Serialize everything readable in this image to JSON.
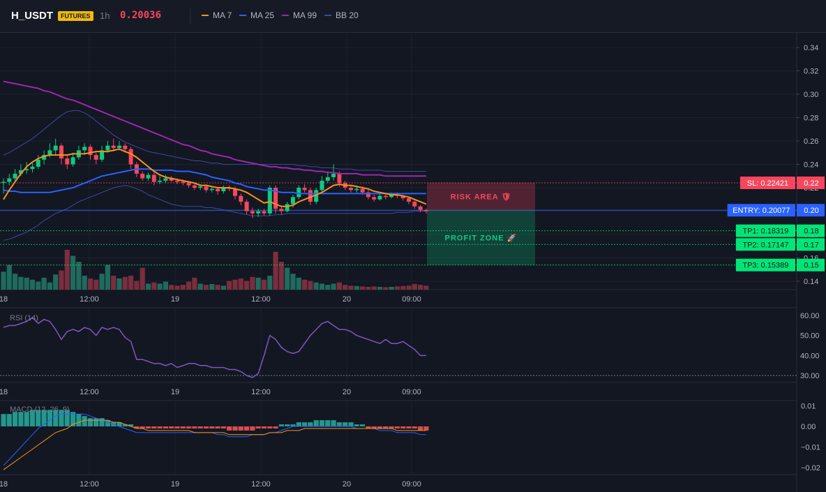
{
  "header": {
    "symbol": "H_USDT",
    "badge": "FUTURES",
    "timeframe": "1h",
    "last_price": "0.20036",
    "legend": [
      {
        "name": "MA 7",
        "color": "#f7931a"
      },
      {
        "name": "MA 25",
        "color": "#2962ff"
      },
      {
        "name": "MA 99",
        "color": "#9c27b0"
      },
      {
        "name": "BB 20",
        "color": "#3b4a9e"
      }
    ]
  },
  "colors": {
    "up": "#0ecb81",
    "down": "#f6465d",
    "volume_up": "#1f6b5e",
    "volume_down": "#7a2e3e",
    "rsi": "#7e57c2",
    "macd_line": "#2962ff",
    "signal_line": "#f7931a",
    "hist_up": "#26a69a",
    "hist_down": "#ef5350",
    "sl": "#f6465d",
    "entry": "#2962ff",
    "tp": "#00e676"
  },
  "chart_data": [
    {
      "type": "candlestick",
      "ylim": [
        0.13,
        0.35
      ],
      "price_ticks": [
        "0.34",
        "0.32",
        "0.30",
        "0.28",
        "0.26",
        "0.24",
        "0.22",
        "0.20",
        "0.18",
        "0.16",
        "0.14"
      ],
      "time_labels": [
        "18",
        "12:00",
        "19",
        "12:00",
        "20",
        "09:00"
      ],
      "candles": [
        [
          0.225,
          0.225,
          0.228,
          0.215
        ],
        [
          0.225,
          0.228,
          0.232,
          0.222
        ],
        [
          0.228,
          0.232,
          0.236,
          0.226
        ],
        [
          0.232,
          0.235,
          0.24,
          0.23
        ],
        [
          0.235,
          0.236,
          0.242,
          0.232
        ],
        [
          0.236,
          0.238,
          0.241,
          0.233
        ],
        [
          0.238,
          0.244,
          0.248,
          0.236
        ],
        [
          0.244,
          0.248,
          0.252,
          0.24
        ],
        [
          0.248,
          0.252,
          0.258,
          0.246
        ],
        [
          0.252,
          0.256,
          0.262,
          0.248
        ],
        [
          0.256,
          0.245,
          0.258,
          0.24
        ],
        [
          0.245,
          0.24,
          0.248,
          0.236
        ],
        [
          0.24,
          0.246,
          0.25,
          0.238
        ],
        [
          0.246,
          0.252,
          0.256,
          0.244
        ],
        [
          0.252,
          0.255,
          0.258,
          0.248
        ],
        [
          0.255,
          0.248,
          0.257,
          0.244
        ],
        [
          0.248,
          0.244,
          0.25,
          0.24
        ],
        [
          0.244,
          0.252,
          0.256,
          0.242
        ],
        [
          0.252,
          0.256,
          0.26,
          0.25
        ],
        [
          0.256,
          0.254,
          0.262,
          0.251
        ],
        [
          0.254,
          0.256,
          0.26,
          0.252
        ],
        [
          0.256,
          0.253,
          0.258,
          0.25
        ],
        [
          0.253,
          0.24,
          0.255,
          0.236
        ],
        [
          0.24,
          0.232,
          0.242,
          0.229
        ],
        [
          0.232,
          0.228,
          0.234,
          0.226
        ],
        [
          0.228,
          0.231,
          0.233,
          0.226
        ],
        [
          0.231,
          0.225,
          0.233,
          0.222
        ],
        [
          0.225,
          0.226,
          0.23,
          0.223
        ],
        [
          0.226,
          0.228,
          0.231,
          0.224
        ],
        [
          0.228,
          0.226,
          0.23,
          0.225
        ],
        [
          0.226,
          0.225,
          0.228,
          0.223
        ],
        [
          0.225,
          0.224,
          0.227,
          0.222
        ],
        [
          0.224,
          0.222,
          0.226,
          0.22
        ],
        [
          0.222,
          0.22,
          0.224,
          0.218
        ],
        [
          0.22,
          0.221,
          0.223,
          0.218
        ],
        [
          0.221,
          0.218,
          0.223,
          0.216
        ],
        [
          0.218,
          0.219,
          0.221,
          0.216
        ],
        [
          0.219,
          0.217,
          0.22,
          0.214
        ],
        [
          0.217,
          0.22,
          0.222,
          0.215
        ],
        [
          0.22,
          0.219,
          0.222,
          0.217
        ],
        [
          0.219,
          0.213,
          0.221,
          0.21
        ],
        [
          0.213,
          0.208,
          0.215,
          0.205
        ],
        [
          0.208,
          0.2,
          0.21,
          0.197
        ],
        [
          0.2,
          0.198,
          0.203,
          0.194
        ],
        [
          0.198,
          0.2,
          0.202,
          0.195
        ],
        [
          0.2,
          0.198,
          0.202,
          0.196
        ],
        [
          0.198,
          0.22,
          0.222,
          0.196
        ],
        [
          0.22,
          0.202,
          0.222,
          0.198
        ],
        [
          0.202,
          0.2,
          0.205,
          0.197
        ],
        [
          0.2,
          0.206,
          0.208,
          0.199
        ],
        [
          0.206,
          0.212,
          0.214,
          0.203
        ],
        [
          0.212,
          0.22,
          0.222,
          0.21
        ],
        [
          0.22,
          0.218,
          0.223,
          0.216
        ],
        [
          0.218,
          0.208,
          0.22,
          0.205
        ],
        [
          0.208,
          0.218,
          0.22,
          0.206
        ],
        [
          0.218,
          0.226,
          0.23,
          0.216
        ],
        [
          0.226,
          0.229,
          0.234,
          0.224
        ],
        [
          0.229,
          0.232,
          0.24,
          0.226
        ],
        [
          0.232,
          0.224,
          0.234,
          0.221
        ],
        [
          0.224,
          0.22,
          0.226,
          0.218
        ],
        [
          0.22,
          0.218,
          0.222,
          0.216
        ],
        [
          0.218,
          0.219,
          0.222,
          0.216
        ],
        [
          0.219,
          0.216,
          0.221,
          0.214
        ],
        [
          0.216,
          0.212,
          0.218,
          0.21
        ],
        [
          0.212,
          0.21,
          0.214,
          0.208
        ],
        [
          0.21,
          0.213,
          0.215,
          0.209
        ],
        [
          0.213,
          0.212,
          0.215,
          0.21
        ],
        [
          0.212,
          0.214,
          0.216,
          0.211
        ],
        [
          0.214,
          0.213,
          0.216,
          0.211
        ],
        [
          0.213,
          0.211,
          0.214,
          0.209
        ],
        [
          0.211,
          0.208,
          0.212,
          0.206
        ],
        [
          0.208,
          0.204,
          0.209,
          0.202
        ],
        [
          0.204,
          0.201,
          0.205,
          0.199
        ],
        [
          0.201,
          0.2,
          0.202,
          0.198
        ]
      ],
      "volume_rel": [
        0.45,
        0.62,
        0.4,
        0.32,
        0.3,
        0.25,
        0.2,
        0.3,
        0.18,
        0.38,
        0.48,
        1.0,
        0.85,
        0.7,
        0.35,
        0.28,
        0.25,
        0.4,
        0.62,
        0.35,
        0.28,
        0.32,
        0.35,
        0.22,
        0.55,
        0.15,
        0.18,
        0.15,
        0.2,
        0.12,
        0.1,
        0.12,
        0.2,
        0.3,
        0.15,
        0.12,
        0.14,
        0.12,
        0.1,
        0.22,
        0.25,
        0.28,
        0.22,
        0.32,
        0.3,
        0.25,
        0.35,
        0.95,
        0.7,
        0.55,
        0.4,
        0.3,
        0.25,
        0.22,
        0.18,
        0.15,
        0.12,
        0.15,
        0.18,
        0.12,
        0.1,
        0.09,
        0.08,
        0.07,
        0.08,
        0.07,
        0.06,
        0.07,
        0.08,
        0.09,
        0.1,
        0.14,
        0.12,
        0.1
      ],
      "ma7": [
        0.21,
        0.218,
        0.225,
        0.232,
        0.238,
        0.242,
        0.245,
        0.247,
        0.248,
        0.248,
        0.248,
        0.248,
        0.249,
        0.249,
        0.249,
        0.25,
        0.251,
        0.251,
        0.251,
        0.252,
        0.253,
        0.251,
        0.249,
        0.246,
        0.242,
        0.238,
        0.234,
        0.231,
        0.229,
        0.228,
        0.227,
        0.226,
        0.225,
        0.224,
        0.222,
        0.222,
        0.221,
        0.22,
        0.22,
        0.22,
        0.219,
        0.218,
        0.216,
        0.213,
        0.21,
        0.207,
        0.208,
        0.206,
        0.204,
        0.204,
        0.205,
        0.208,
        0.21,
        0.212,
        0.214,
        0.216,
        0.219,
        0.222,
        0.223,
        0.222,
        0.222,
        0.221,
        0.22,
        0.219,
        0.217,
        0.216,
        0.215,
        0.214,
        0.214,
        0.213,
        0.212,
        0.21,
        0.208,
        0.206
      ],
      "ma25": [
        0.218,
        0.217,
        0.217,
        0.216,
        0.216,
        0.216,
        0.216,
        0.216,
        0.216,
        0.217,
        0.218,
        0.219,
        0.22,
        0.222,
        0.224,
        0.226,
        0.228,
        0.23,
        0.231,
        0.232,
        0.233,
        0.234,
        0.235,
        0.236,
        0.236,
        0.236,
        0.235,
        0.235,
        0.235,
        0.235,
        0.234,
        0.234,
        0.234,
        0.233,
        0.232,
        0.231,
        0.229,
        0.228,
        0.227,
        0.226,
        0.224,
        0.223,
        0.221,
        0.22,
        0.219,
        0.218,
        0.218,
        0.217,
        0.216,
        0.216,
        0.216,
        0.215,
        0.215,
        0.215,
        0.215,
        0.215,
        0.215,
        0.215,
        0.215,
        0.215,
        0.215,
        0.215,
        0.215,
        0.215,
        0.215,
        0.215,
        0.215,
        0.215,
        0.215,
        0.215,
        0.215,
        0.215,
        0.215,
        0.215
      ],
      "ma99": [
        0.311,
        0.31,
        0.309,
        0.308,
        0.307,
        0.306,
        0.305,
        0.303,
        0.302,
        0.3,
        0.298,
        0.296,
        0.295,
        0.293,
        0.291,
        0.289,
        0.287,
        0.285,
        0.283,
        0.281,
        0.279,
        0.277,
        0.275,
        0.273,
        0.271,
        0.269,
        0.267,
        0.265,
        0.263,
        0.261,
        0.259,
        0.257,
        0.256,
        0.254,
        0.252,
        0.251,
        0.249,
        0.248,
        0.247,
        0.246,
        0.244,
        0.243,
        0.242,
        0.241,
        0.24,
        0.239,
        0.238,
        0.238,
        0.237,
        0.237,
        0.236,
        0.236,
        0.235,
        0.235,
        0.234,
        0.234,
        0.233,
        0.233,
        0.232,
        0.232,
        0.232,
        0.232,
        0.231,
        0.231,
        0.231,
        0.231,
        0.23,
        0.23,
        0.23,
        0.23,
        0.23,
        0.23,
        0.23,
        0.23
      ],
      "bb_upper": [
        0.248,
        0.25,
        0.253,
        0.256,
        0.259,
        0.262,
        0.266,
        0.27,
        0.274,
        0.278,
        0.282,
        0.285,
        0.286,
        0.286,
        0.284,
        0.281,
        0.277,
        0.273,
        0.269,
        0.265,
        0.262,
        0.259,
        0.257,
        0.255,
        0.253,
        0.251,
        0.25,
        0.249,
        0.248,
        0.247,
        0.246,
        0.245,
        0.244,
        0.243,
        0.243,
        0.242,
        0.241,
        0.241,
        0.24,
        0.24,
        0.24,
        0.24,
        0.24,
        0.24,
        0.24,
        0.24,
        0.24,
        0.24,
        0.24,
        0.24,
        0.24,
        0.239,
        0.239,
        0.238,
        0.238,
        0.237,
        0.237,
        0.237,
        0.236,
        0.236,
        0.236,
        0.235,
        0.235,
        0.235,
        0.235,
        0.235,
        0.234,
        0.234,
        0.234,
        0.234,
        0.234,
        0.234,
        0.234,
        0.234
      ],
      "bb_lower": [
        0.175,
        0.176,
        0.178,
        0.18,
        0.182,
        0.185,
        0.188,
        0.192,
        0.195,
        0.198,
        0.2,
        0.202,
        0.205,
        0.208,
        0.21,
        0.212,
        0.214,
        0.216,
        0.218,
        0.22,
        0.221,
        0.222,
        0.221,
        0.219,
        0.217,
        0.214,
        0.212,
        0.21,
        0.208,
        0.206,
        0.205,
        0.204,
        0.204,
        0.204,
        0.204,
        0.203,
        0.203,
        0.202,
        0.201,
        0.2,
        0.199,
        0.198,
        0.197,
        0.196,
        0.196,
        0.196,
        0.196,
        0.197,
        0.197,
        0.198,
        0.198,
        0.198,
        0.198,
        0.198,
        0.198,
        0.198,
        0.198,
        0.198,
        0.198,
        0.198,
        0.198,
        0.198,
        0.198,
        0.198,
        0.198,
        0.198,
        0.198,
        0.198,
        0.199,
        0.199,
        0.199,
        0.2,
        0.2,
        0.2
      ],
      "levels": [
        {
          "label": "SL: 0.22421",
          "tick": "0.22",
          "value": 0.22421,
          "kind": "sl"
        },
        {
          "label": "ENTRY: 0.20077",
          "tick": "0.20",
          "value": 0.20077,
          "kind": "entry"
        },
        {
          "label": "TP1: 0.18319",
          "tick": "0.18",
          "value": 0.18319,
          "kind": "tp"
        },
        {
          "label": "TP2: 0.17147",
          "tick": "0.17",
          "value": 0.17147,
          "kind": "tp"
        },
        {
          "label": "TP3: 0.15389",
          "tick": "0.15",
          "value": 0.15389,
          "kind": "tp"
        }
      ],
      "zones": {
        "risk_label": "RISK AREA 🛡",
        "profit_label": "PROFIT ZONE 🚀"
      }
    },
    {
      "type": "line",
      "title": "RSI (14)",
      "ylim": [
        25,
        65
      ],
      "ticks": [
        "60.00",
        "50.00",
        "40.00",
        "30.00"
      ],
      "values": [
        54,
        55,
        55,
        56,
        57,
        59,
        56,
        58,
        57,
        53,
        48,
        52,
        53,
        52,
        54,
        53,
        50,
        54,
        53,
        54,
        53,
        49,
        47,
        38,
        38,
        37,
        36,
        36,
        35,
        36,
        34,
        35,
        36,
        36,
        35,
        35,
        34,
        34,
        34,
        33,
        33,
        32,
        30,
        29,
        31,
        40,
        50,
        48,
        44,
        42,
        41,
        42,
        46,
        50,
        53,
        56,
        57,
        55,
        53,
        53,
        52,
        50,
        49,
        48,
        47,
        46,
        48,
        46,
        46,
        47,
        45,
        43,
        40,
        40
      ]
    },
    {
      "type": "line",
      "title": "MACD (12, 26, 9)",
      "ylim": [
        -0.022,
        0.012
      ],
      "ticks": [
        "0.01",
        "0.00",
        "−0.01",
        "−0.02"
      ],
      "macd": [
        -0.019,
        -0.016,
        -0.013,
        -0.01,
        -0.007,
        -0.004,
        -0.001,
        0.001,
        0.003,
        0.005,
        0.006,
        0.006,
        0.006,
        0.006,
        0.006,
        0.005,
        0.004,
        0.003,
        0.002,
        0.001,
        0.0,
        -0.001,
        -0.002,
        -0.003,
        -0.003,
        -0.003,
        -0.003,
        -0.003,
        -0.003,
        -0.003,
        -0.003,
        -0.003,
        -0.003,
        -0.003,
        -0.003,
        -0.003,
        -0.003,
        -0.004,
        -0.004,
        -0.005,
        -0.005,
        -0.005,
        -0.005,
        -0.004,
        -0.004,
        -0.004,
        -0.003,
        -0.003,
        -0.002,
        -0.001,
        0.0,
        0.0,
        0.0,
        0.0,
        0.0,
        0.0,
        0.0,
        0.0,
        0.0,
        0.0,
        0.0,
        -0.001,
        -0.001,
        -0.001,
        -0.001,
        -0.002,
        -0.002,
        -0.002,
        -0.003,
        -0.003,
        -0.003,
        -0.003,
        -0.004,
        -0.004
      ],
      "signal": [
        -0.021,
        -0.019,
        -0.017,
        -0.015,
        -0.013,
        -0.011,
        -0.009,
        -0.007,
        -0.005,
        -0.003,
        -0.002,
        -0.001,
        0.001,
        0.002,
        0.003,
        0.003,
        0.003,
        0.003,
        0.003,
        0.002,
        0.002,
        0.001,
        0.0,
        -0.001,
        -0.001,
        -0.002,
        -0.002,
        -0.002,
        -0.002,
        -0.002,
        -0.002,
        -0.002,
        -0.002,
        -0.003,
        -0.003,
        -0.003,
        -0.003,
        -0.003,
        -0.003,
        -0.004,
        -0.004,
        -0.004,
        -0.004,
        -0.004,
        -0.004,
        -0.004,
        -0.003,
        -0.003,
        -0.003,
        -0.002,
        -0.002,
        -0.002,
        -0.001,
        -0.001,
        -0.001,
        -0.001,
        -0.001,
        -0.001,
        -0.001,
        -0.001,
        -0.001,
        -0.001,
        -0.001,
        -0.001,
        -0.001,
        -0.001,
        -0.001,
        -0.001,
        -0.002,
        -0.002,
        -0.002,
        -0.002,
        -0.002,
        -0.002
      ],
      "histogram": [
        0.006,
        0.006,
        0.007,
        0.007,
        0.007,
        0.008,
        0.008,
        0.008,
        0.008,
        0.008,
        0.008,
        0.008,
        0.007,
        0.006,
        0.005,
        0.004,
        0.004,
        0.004,
        0.003,
        0.002,
        0.002,
        0.001,
        0.001,
        -0.001,
        -0.001,
        -0.001,
        -0.001,
        -0.001,
        -0.001,
        -0.001,
        -0.001,
        -0.001,
        -0.001,
        -0.001,
        -0.001,
        -0.001,
        -0.001,
        -0.001,
        -0.001,
        -0.002,
        -0.002,
        -0.002,
        -0.002,
        -0.002,
        -0.001,
        -0.001,
        -0.001,
        -0.001,
        0.001,
        0.001,
        0.001,
        0.002,
        0.002,
        0.002,
        0.003,
        0.003,
        0.003,
        0.003,
        0.002,
        0.002,
        0.002,
        0.001,
        0.001,
        -0.001,
        -0.001,
        -0.001,
        -0.001,
        -0.001,
        -0.001,
        -0.001,
        -0.001,
        -0.001,
        -0.002,
        -0.002
      ]
    }
  ]
}
